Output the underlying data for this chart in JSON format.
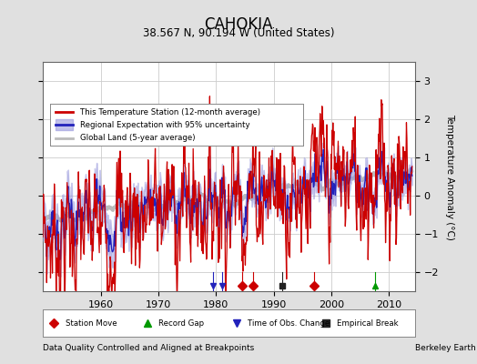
{
  "title": "CAHOKIA",
  "subtitle": "38.567 N, 90.194 W (United States)",
  "ylabel": "Temperature Anomaly (°C)",
  "xlabel_left": "Data Quality Controlled and Aligned at Breakpoints",
  "xlabel_right": "Berkeley Earth",
  "ylim": [
    -2.5,
    3.5
  ],
  "xlim": [
    1950,
    2014.5
  ],
  "yticks": [
    -2,
    -1,
    0,
    1,
    2,
    3
  ],
  "xticks": [
    1960,
    1970,
    1980,
    1990,
    2000,
    2010
  ],
  "bg_color": "#e0e0e0",
  "plot_bg_color": "#ffffff",
  "grid_color": "#cccccc",
  "station_color": "#cc0000",
  "regional_color": "#2222bb",
  "regional_fill_color": "#9999dd",
  "global_color": "#bbbbbb",
  "legend_labels": [
    "This Temperature Station (12-month average)",
    "Regional Expectation with 95% uncertainty",
    "Global Land (5-year average)"
  ],
  "marker_events": {
    "station_move": [
      1984.5,
      1986.5,
      1997.0
    ],
    "record_gap": [
      2007.5
    ],
    "time_obs_change": [
      1979.5,
      1981.0
    ],
    "empirical_break": [
      1991.5
    ]
  }
}
